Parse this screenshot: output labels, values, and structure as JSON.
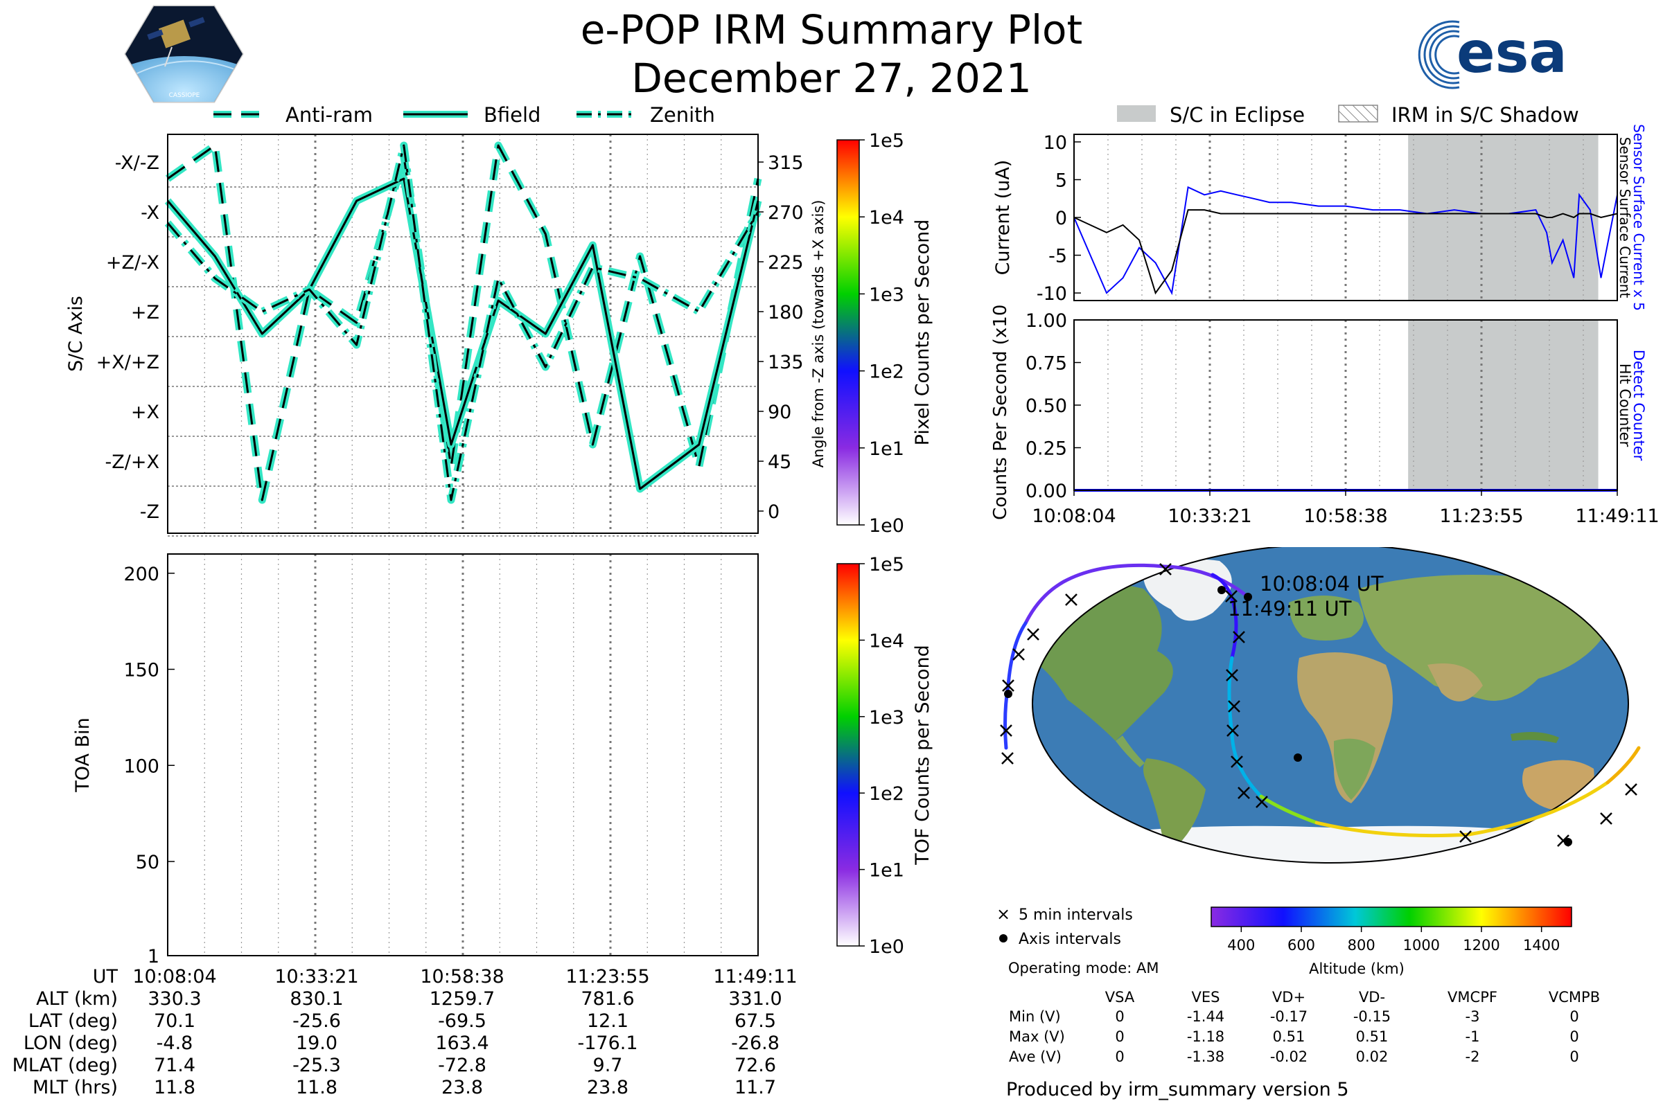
{
  "header": {
    "title": "e-POP IRM Summary Plot",
    "date": "December 27, 2021",
    "logo_left": "CASSIOPE",
    "logo_right": "esa"
  },
  "legend_top_left": {
    "items": [
      {
        "label": "Anti-ram",
        "style": "dashed"
      },
      {
        "label": "Bfield",
        "style": "solid"
      },
      {
        "label": "Zenith",
        "style": "dashdot"
      }
    ]
  },
  "legend_top_right": {
    "items": [
      {
        "label": "S/C in Eclipse",
        "style": "grey-fill"
      },
      {
        "label": "IRM in S/C Shadow",
        "style": "hatch"
      }
    ]
  },
  "colors": {
    "trace_outline": "#33e6c4",
    "trace_line": "#000000",
    "sensor_current": "#0000ff",
    "surface_current": "#000000",
    "eclipse": "#c8cbcb",
    "land": "#7ea65a",
    "ocean": "#3c7cb5",
    "ice": "#f4f6f8"
  },
  "chart_data": [
    {
      "type": "line",
      "name": "attitude",
      "ylabel": "S/C Axis",
      "ylabel_right": "Angle from -Z axis (towards +X axis)",
      "yticks_left": [
        "-X/-Z",
        "-X",
        "+Z/-X",
        "+Z",
        "+X/+Z",
        "+X",
        "-Z/+X",
        "-Z"
      ],
      "yticks_right": [
        "315",
        "270",
        "225",
        "180",
        "135",
        "90",
        "45",
        "0"
      ],
      "ylim": [
        -20,
        340
      ],
      "x": [
        0,
        8,
        16,
        24,
        32,
        40,
        48,
        56,
        64,
        72,
        80,
        90,
        100
      ],
      "series": [
        {
          "name": "Anti-ram",
          "values": [
            300,
            330,
            10,
            200,
            170,
            320,
            40,
            330,
            250,
            60,
            230,
            40,
            300
          ]
        },
        {
          "name": "Bfield",
          "values": [
            280,
            230,
            160,
            200,
            280,
            300,
            60,
            190,
            160,
            240,
            20,
            60,
            280
          ]
        },
        {
          "name": "Zenith",
          "values": [
            260,
            210,
            180,
            200,
            150,
            330,
            10,
            210,
            130,
            220,
            210,
            180,
            270
          ]
        }
      ],
      "colorbar": {
        "label": "Pixel Counts per Second",
        "ticks": [
          "1e0",
          "1e1",
          "1e2",
          "1e3",
          "1e4",
          "1e5"
        ]
      }
    },
    {
      "type": "line",
      "name": "currents",
      "ylabel": "Current (uA)",
      "ylabel_right_1": "Sensor Surface Current x 5",
      "ylabel_right_2": "Sensor Surface Current",
      "ylim": [
        -11,
        11
      ],
      "yticks": [
        "10",
        "5",
        "0",
        "-5",
        "-10"
      ],
      "x": [
        0,
        3,
        6,
        9,
        12,
        15,
        18,
        21,
        24,
        27,
        30,
        33,
        36,
        40,
        45,
        50,
        55,
        60,
        65,
        70,
        75,
        80,
        85,
        87,
        88,
        90,
        92,
        93,
        95,
        97,
        100
      ],
      "series": [
        {
          "name": "Sensor Surface Current x 5",
          "values": [
            0,
            -5,
            -10,
            -8,
            -4,
            -6,
            -10,
            4,
            3,
            3.5,
            3,
            2.5,
            2,
            2,
            1.5,
            1.5,
            1,
            1,
            0.5,
            1,
            0.5,
            0.5,
            1,
            -2,
            -6,
            -3,
            -8,
            3,
            1,
            -8,
            3
          ]
        },
        {
          "name": "Sensor Surface Current",
          "values": [
            0,
            -1,
            -2,
            -1,
            -3,
            -10,
            -7,
            1,
            1,
            0.5,
            0.5,
            0.5,
            0.5,
            0.5,
            0.5,
            0.5,
            0.5,
            0.5,
            0.5,
            0.5,
            0.5,
            0.5,
            0.5,
            0,
            0,
            0.5,
            0,
            0.5,
            0.5,
            0,
            0.5
          ]
        }
      ],
      "eclipse_range": [
        61.5,
        96.5
      ]
    },
    {
      "type": "line",
      "name": "counts",
      "ylabel": "Counts Per Second (x10³)",
      "ylabel_right_1": "Detect Counter",
      "ylabel_right_2": "Hit Counter",
      "ylim": [
        0,
        1
      ],
      "yticks": [
        "1.00",
        "0.75",
        "0.50",
        "0.25",
        "0.00"
      ],
      "xticks": [
        "10:08:04",
        "10:33:21",
        "10:58:38",
        "11:23:55",
        "11:49:11"
      ],
      "eclipse_range": [
        61.5,
        96.5
      ]
    },
    {
      "type": "heatmap",
      "name": "toa",
      "ylabel": "TOA Bin",
      "yticks": [
        "200",
        "150",
        "100",
        "50",
        "1"
      ],
      "colorbar": {
        "label": "TOF Counts per Second",
        "ticks": [
          "1e0",
          "1e1",
          "1e2",
          "1e3",
          "1e4",
          "1e5"
        ]
      }
    }
  ],
  "orbit_table": {
    "row_labels": [
      "UT",
      "ALT (km)",
      "LAT (deg)",
      "LON (deg)",
      "MLAT (deg)",
      "MLT (hrs)"
    ],
    "columns": [
      [
        "10:08:04",
        "330.3",
        "70.1",
        "-4.8",
        "71.4",
        "11.8"
      ],
      [
        "10:33:21",
        "830.1",
        "-25.6",
        "19.0",
        "-25.3",
        "11.8"
      ],
      [
        "10:58:38",
        "1259.7",
        "-69.5",
        "163.4",
        "-72.8",
        "23.8"
      ],
      [
        "11:23:55",
        "781.6",
        "12.1",
        "-176.1",
        "9.7",
        "23.8"
      ],
      [
        "11:49:11",
        "331.0",
        "67.5",
        "-26.8",
        "72.6",
        "11.7"
      ]
    ]
  },
  "map": {
    "start_label": "10:08:04 UT",
    "end_label": "11:49:11 UT",
    "legend_5min": "5 min intervals",
    "legend_axis": "Axis intervals",
    "operating_mode": "Operating mode: AM",
    "altitude_label": "Altitude (km)",
    "altitude_ticks": [
      "400",
      "600",
      "800",
      "1000",
      "1200",
      "1400"
    ]
  },
  "voltage_table": {
    "headers": [
      "VSA",
      "VES",
      "VD+",
      "VD-",
      "VMCPF",
      "VCMPB"
    ],
    "rows": [
      {
        "label": "Min (V)",
        "values": [
          "0",
          "-1.44",
          "-0.17",
          "-0.15",
          "-3",
          "0"
        ]
      },
      {
        "label": "Max (V)",
        "values": [
          "0",
          "-1.18",
          "0.51",
          "0.51",
          "-1",
          "0"
        ]
      },
      {
        "label": "Ave (V)",
        "values": [
          "0",
          "-1.38",
          "-0.02",
          "0.02",
          "-2",
          "0"
        ]
      }
    ]
  },
  "footer": "Produced by irm_summary version 5"
}
